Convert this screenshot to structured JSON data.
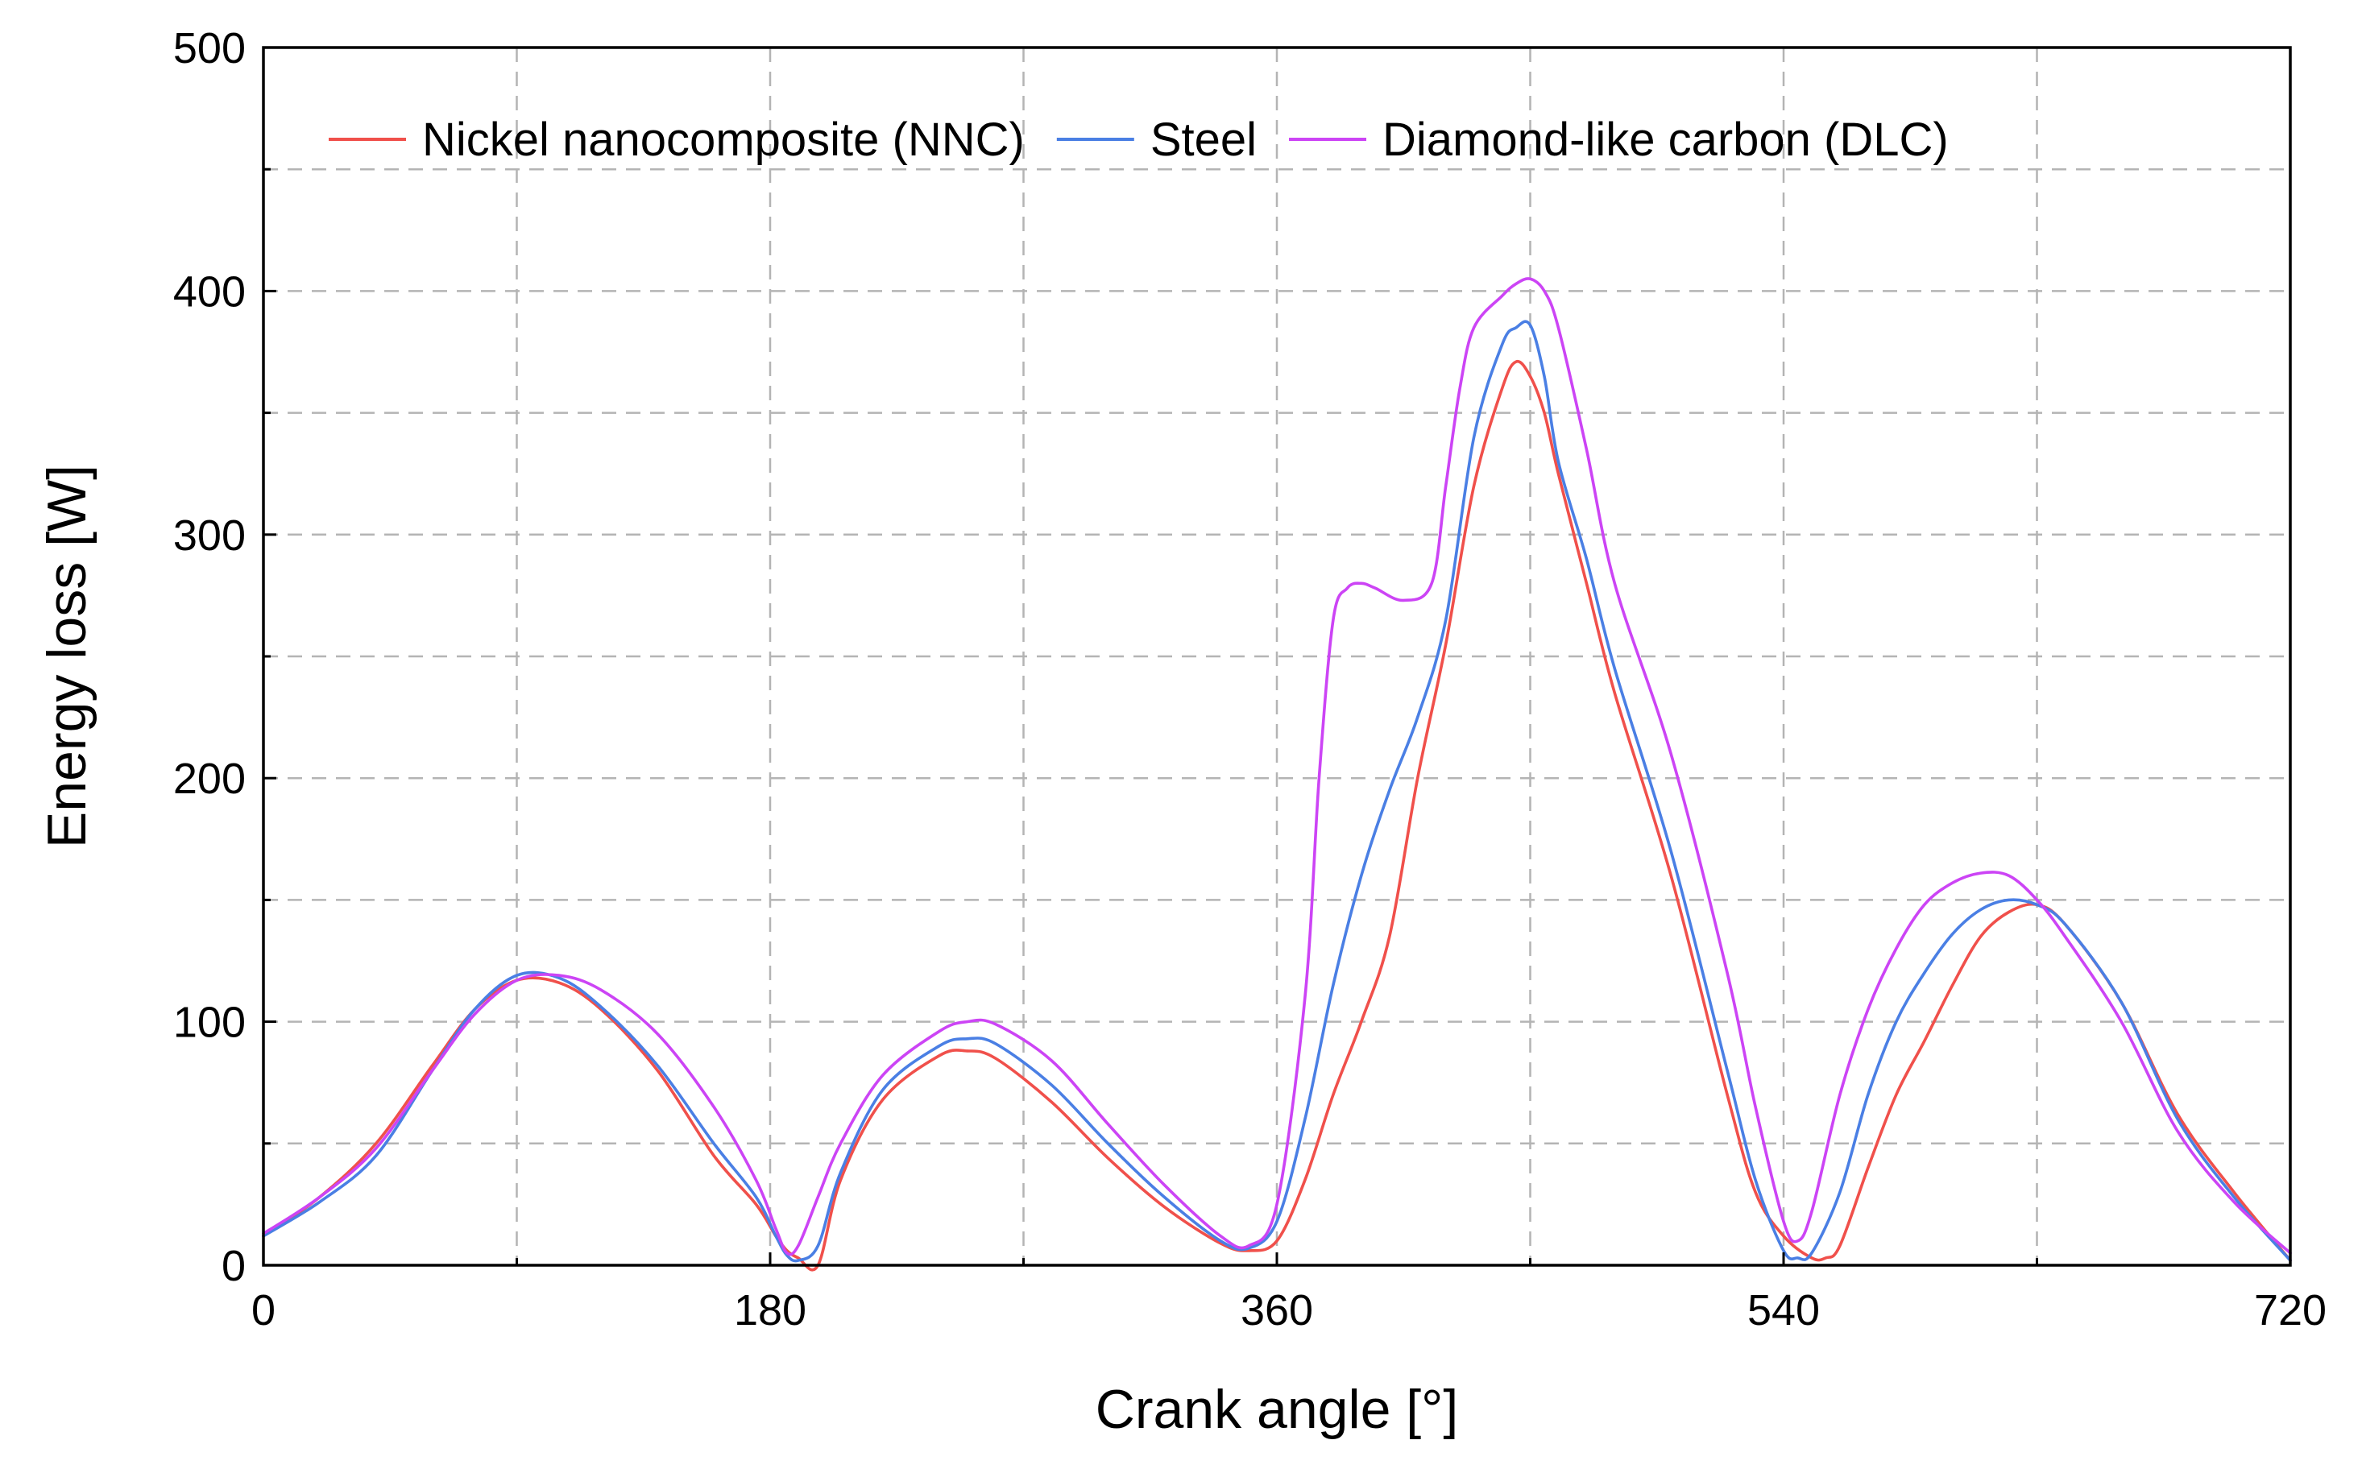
{
  "chart_data": {
    "type": "line",
    "xlabel": "Crank angle [°]",
    "ylabel": "Energy loss [W]",
    "xlim": [
      0,
      720
    ],
    "ylim": [
      0,
      500
    ],
    "xticks": [
      0,
      180,
      360,
      540,
      720
    ],
    "yticks": [
      0,
      100,
      200,
      300,
      400,
      500
    ],
    "xminor": [
      90,
      270,
      450,
      630
    ],
    "yminor": [
      50,
      150,
      250,
      350,
      450
    ],
    "grid": true,
    "legend_position": "top",
    "series": [
      {
        "name": "Nickel nanocomposite (NNC)",
        "color": "#f0504b",
        "x": [
          0,
          20,
          40,
          60,
          75,
          90,
          105,
          120,
          140,
          160,
          175,
          182,
          186,
          190,
          197,
          205,
          220,
          240,
          250,
          260,
          280,
          300,
          320,
          340,
          350,
          360,
          370,
          380,
          390,
          400,
          410,
          420,
          430,
          440,
          445,
          450,
          455,
          460,
          470,
          480,
          500,
          520,
          530,
          540,
          550,
          555,
          560,
          570,
          580,
          590,
          600,
          610,
          620,
          630,
          640,
          660,
          680,
          700,
          720
        ],
        "y": [
          12,
          28,
          50,
          82,
          105,
          117,
          116,
          105,
          80,
          45,
          25,
          12,
          6,
          3,
          0,
          35,
          68,
          86,
          88,
          85,
          67,
          44,
          24,
          9,
          6,
          10,
          35,
          70,
          100,
          135,
          200,
          255,
          320,
          360,
          371,
          365,
          350,
          325,
          280,
          235,
          160,
          70,
          30,
          12,
          3,
          3,
          8,
          40,
          70,
          92,
          115,
          135,
          145,
          148,
          140,
          108,
          62,
          30,
          2
        ]
      },
      {
        "name": "Steel",
        "color": "#4a7fe4",
        "x": [
          0,
          20,
          40,
          60,
          75,
          90,
          105,
          120,
          140,
          160,
          175,
          182,
          186,
          190,
          197,
          205,
          220,
          240,
          250,
          260,
          280,
          300,
          320,
          340,
          350,
          360,
          370,
          380,
          390,
          400,
          410,
          420,
          430,
          440,
          445,
          450,
          455,
          460,
          470,
          480,
          500,
          520,
          530,
          540,
          545,
          550,
          560,
          570,
          580,
          590,
          600,
          610,
          620,
          630,
          640,
          660,
          680,
          700,
          720
        ],
        "y": [
          12,
          26,
          45,
          80,
          105,
          119,
          118,
          106,
          82,
          50,
          28,
          12,
          4,
          2,
          8,
          38,
          72,
          90,
          93,
          91,
          74,
          50,
          28,
          10,
          7,
          18,
          60,
          115,
          160,
          195,
          225,
          265,
          340,
          378,
          385,
          386,
          365,
          330,
          290,
          245,
          170,
          80,
          35,
          6,
          3,
          5,
          30,
          70,
          100,
          120,
          136,
          146,
          150,
          148,
          140,
          108,
          60,
          28,
          2
        ]
      },
      {
        "name": "Diamond-like carbon (DLC)",
        "color": "#cc44f5",
        "x": [
          0,
          20,
          40,
          60,
          75,
          90,
          105,
          120,
          140,
          160,
          175,
          182,
          186,
          190,
          197,
          205,
          220,
          240,
          250,
          260,
          280,
          300,
          320,
          340,
          350,
          360,
          370,
          375,
          380,
          385,
          390,
          395,
          405,
          415,
          420,
          425,
          430,
          440,
          445,
          450,
          455,
          460,
          470,
          480,
          500,
          520,
          530,
          540,
          545,
          550,
          560,
          570,
          580,
          590,
          600,
          610,
          620,
          630,
          640,
          660,
          680,
          700,
          720
        ],
        "y": [
          13,
          28,
          48,
          80,
          103,
          117,
          119,
          113,
          95,
          65,
          35,
          15,
          5,
          8,
          28,
          50,
          78,
          96,
          100,
          99,
          84,
          58,
          33,
          12,
          8,
          25,
          110,
          200,
          265,
          278,
          280,
          278,
          273,
          280,
          320,
          360,
          385,
          398,
          403,
          405,
          400,
          385,
          335,
          280,
          210,
          120,
          65,
          18,
          10,
          22,
          70,
          105,
          130,
          148,
          157,
          161,
          160,
          150,
          135,
          100,
          55,
          26,
          5
        ]
      }
    ]
  }
}
